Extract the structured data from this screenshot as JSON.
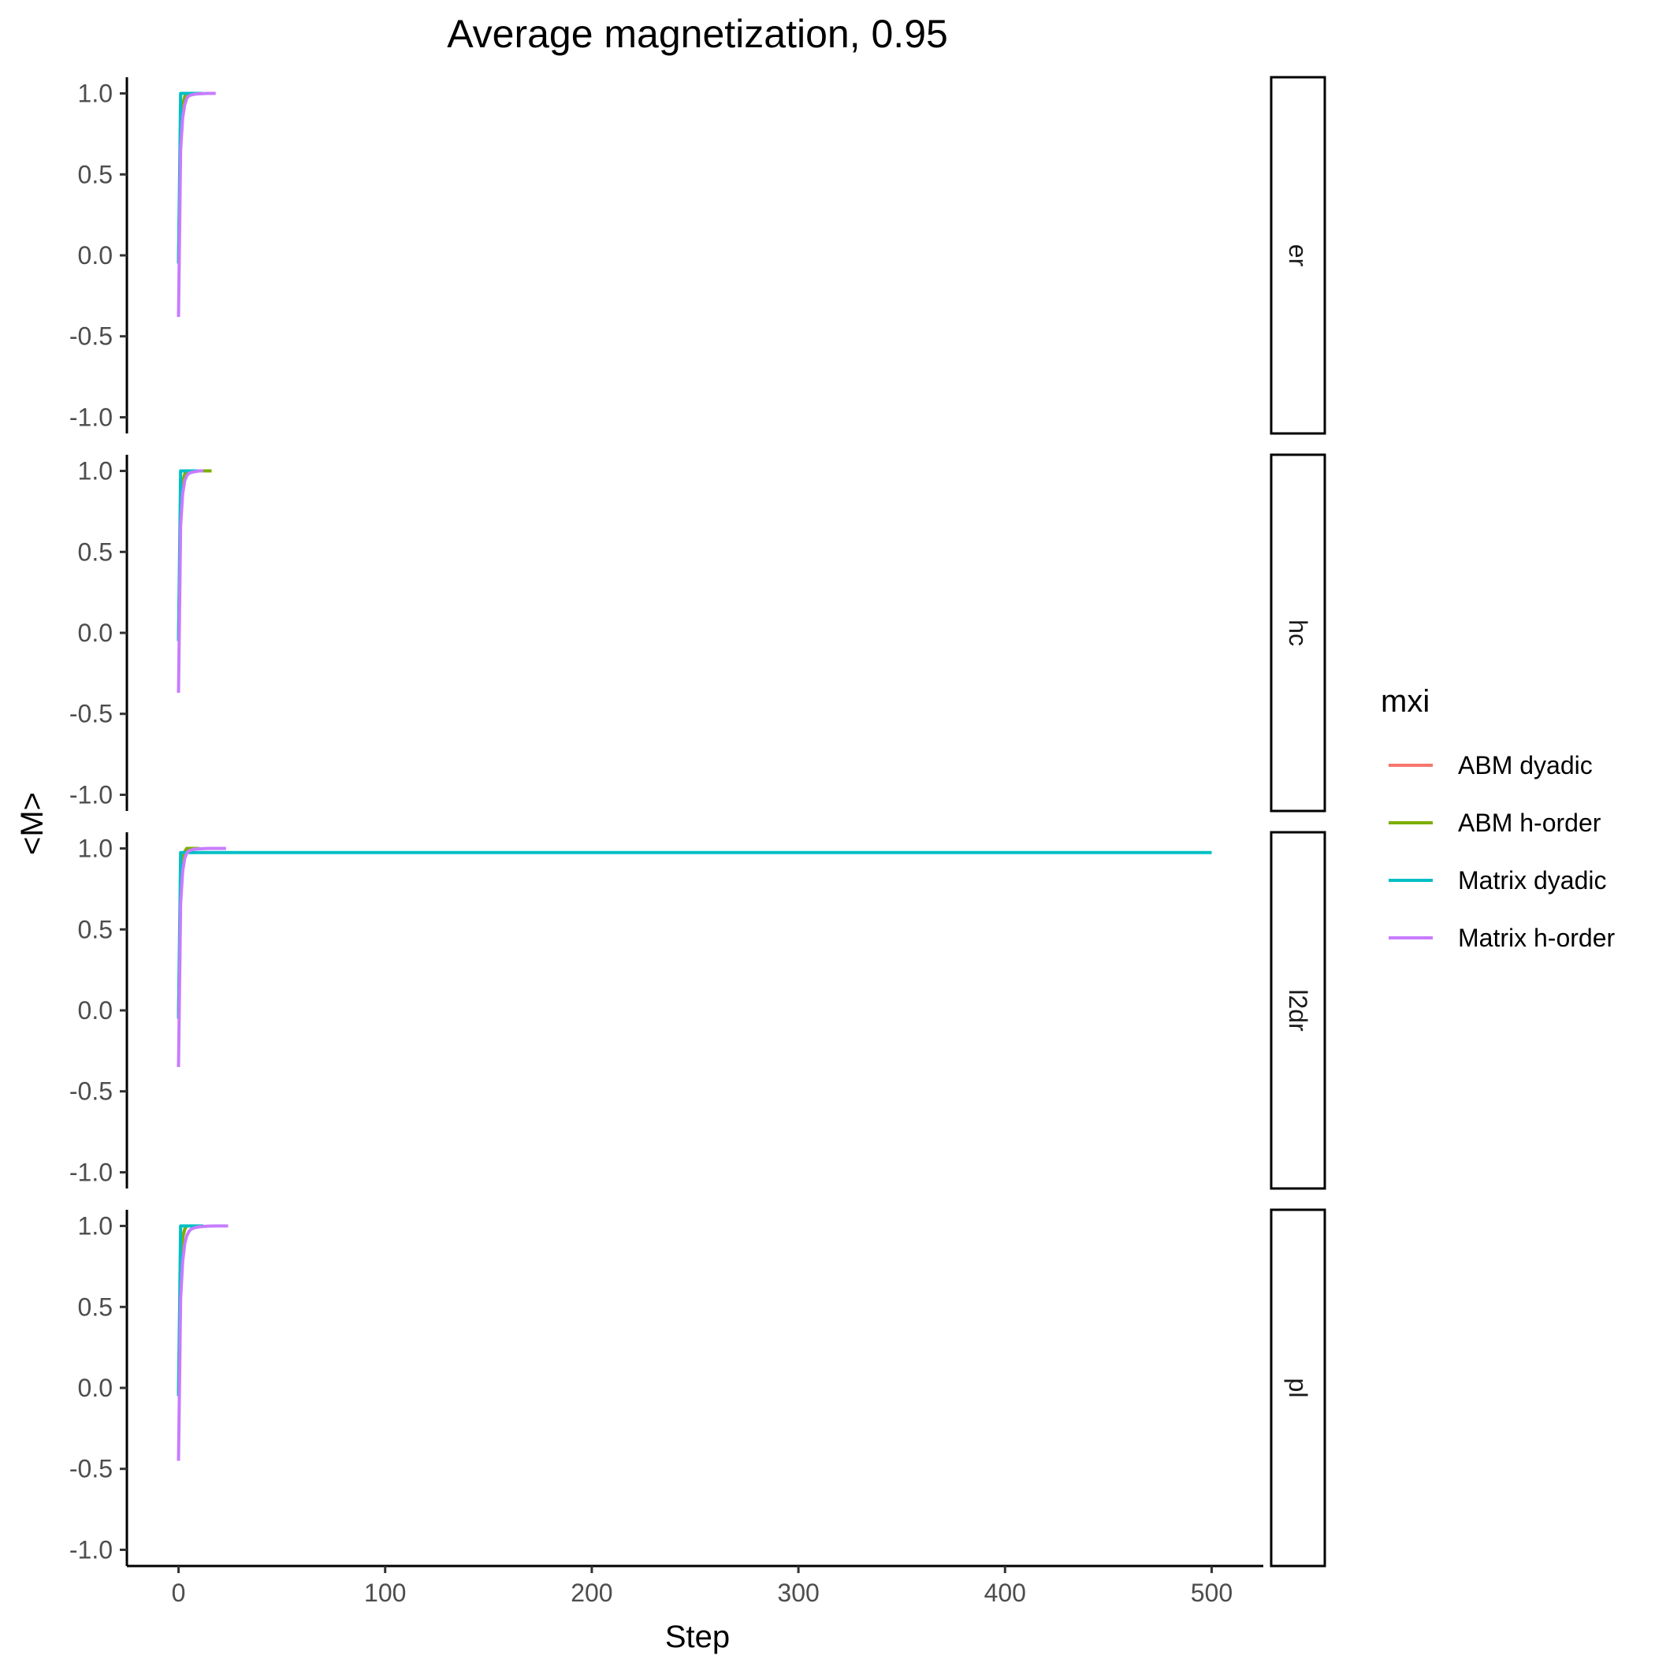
{
  "chart_data": {
    "type": "line",
    "title": "Average magnetization, 0.95",
    "xlabel": "Step",
    "ylabel": "<M>",
    "xlim": [
      -25,
      525
    ],
    "ylim": [
      -1.1,
      1.1
    ],
    "x_ticks": [
      0,
      100,
      200,
      300,
      400,
      500
    ],
    "y_ticks": [
      -1.0,
      -0.5,
      0.0,
      0.5,
      1.0
    ],
    "x_tick_labels": [
      "0",
      "100",
      "200",
      "300",
      "400",
      "500"
    ],
    "y_tick_labels": [
      "-1.0",
      "-0.5",
      "0.0",
      "0.5",
      "1.0"
    ],
    "grid": false,
    "legend": {
      "title": "mxi",
      "position": "right",
      "entries": [
        {
          "name": "ABM dyadic",
          "color": "#F8766D"
        },
        {
          "name": "ABM h-order",
          "color": "#7CAE00"
        },
        {
          "name": "Matrix dyadic",
          "color": "#00BFC4"
        },
        {
          "name": "Matrix h-order",
          "color": "#C77CFF"
        }
      ]
    },
    "panels": [
      {
        "facet": "er",
        "series": [
          {
            "name": "ABM dyadic",
            "x": [
              0,
              1,
              2,
              3,
              4,
              5,
              6,
              8,
              10,
              12
            ],
            "y": [
              -0.05,
              0.72,
              0.93,
              0.98,
              1.0,
              1.0,
              1.0,
              1.0,
              1.0,
              1.0
            ]
          },
          {
            "name": "ABM h-order",
            "x": [
              0,
              1,
              2,
              3,
              4,
              5,
              6,
              8,
              10,
              12
            ],
            "y": [
              -0.05,
              0.72,
              0.93,
              0.98,
              1.0,
              1.0,
              1.0,
              1.0,
              1.0,
              1.0
            ]
          },
          {
            "name": "Matrix dyadic",
            "x": [
              0,
              1,
              2,
              3,
              5,
              10,
              12
            ],
            "y": [
              -0.05,
              1.0,
              1.0,
              1.0,
              1.0,
              1.0,
              1.0
            ]
          },
          {
            "name": "Matrix h-order",
            "x": [
              0,
              1,
              2,
              3,
              4,
              5,
              6,
              8,
              10,
              14,
              18
            ],
            "y": [
              -0.38,
              0.65,
              0.85,
              0.93,
              0.97,
              0.985,
              0.99,
              0.996,
              0.998,
              1.0,
              1.0
            ]
          }
        ]
      },
      {
        "facet": "hc",
        "series": [
          {
            "name": "ABM dyadic",
            "x": [
              0,
              1,
              2,
              3,
              4,
              5,
              6,
              8,
              10,
              14,
              16
            ],
            "y": [
              -0.05,
              0.72,
              0.93,
              0.98,
              1.0,
              1.0,
              1.0,
              1.0,
              1.0,
              1.0,
              1.0
            ]
          },
          {
            "name": "ABM h-order",
            "x": [
              0,
              1,
              2,
              3,
              4,
              5,
              6,
              8,
              10,
              14,
              16
            ],
            "y": [
              -0.05,
              0.72,
              0.93,
              0.98,
              1.0,
              1.0,
              1.0,
              1.0,
              1.0,
              1.0,
              1.0
            ]
          },
          {
            "name": "Matrix dyadic",
            "x": [
              0,
              1,
              2,
              3,
              5,
              10,
              12
            ],
            "y": [
              -0.05,
              1.0,
              1.0,
              1.0,
              1.0,
              1.0,
              1.0
            ]
          },
          {
            "name": "Matrix h-order",
            "x": [
              0,
              1,
              2,
              3,
              4,
              5,
              6,
              8,
              10,
              12
            ],
            "y": [
              -0.37,
              0.66,
              0.86,
              0.94,
              0.97,
              0.985,
              0.99,
              0.996,
              1.0,
              1.0
            ]
          }
        ]
      },
      {
        "facet": "l2dr",
        "series": [
          {
            "name": "ABM dyadic",
            "x": [
              0,
              1,
              2,
              3,
              4,
              5,
              6,
              8,
              10
            ],
            "y": [
              -0.05,
              0.72,
              0.93,
              0.98,
              1.0,
              1.0,
              1.0,
              1.0,
              1.0
            ]
          },
          {
            "name": "ABM h-order",
            "x": [
              0,
              1,
              2,
              3,
              4,
              5,
              6,
              8,
              10
            ],
            "y": [
              -0.05,
              0.72,
              0.93,
              0.98,
              1.0,
              1.0,
              1.0,
              1.0,
              1.0
            ]
          },
          {
            "name": "Matrix dyadic",
            "x": [
              0,
              1,
              2,
              3,
              5,
              10,
              100,
              200,
              300,
              400,
              500
            ],
            "y": [
              -0.05,
              0.975,
              0.975,
              0.975,
              0.975,
              0.975,
              0.975,
              0.975,
              0.975,
              0.975,
              0.975
            ]
          },
          {
            "name": "Matrix h-order",
            "x": [
              0,
              1,
              2,
              3,
              4,
              5,
              6,
              8,
              10,
              14,
              18,
              23
            ],
            "y": [
              -0.35,
              0.66,
              0.86,
              0.94,
              0.97,
              0.985,
              0.99,
              0.996,
              0.998,
              1.0,
              1.0,
              1.0
            ]
          }
        ]
      },
      {
        "facet": "pl",
        "series": [
          {
            "name": "ABM dyadic",
            "x": [
              0,
              1,
              2,
              3,
              4,
              5,
              6,
              8,
              10
            ],
            "y": [
              -0.05,
              0.72,
              0.93,
              0.98,
              1.0,
              1.0,
              1.0,
              1.0,
              1.0
            ]
          },
          {
            "name": "ABM h-order",
            "x": [
              0,
              1,
              2,
              3,
              4,
              5,
              6,
              8,
              10
            ],
            "y": [
              -0.05,
              0.72,
              0.93,
              0.98,
              1.0,
              1.0,
              1.0,
              1.0,
              1.0
            ]
          },
          {
            "name": "Matrix dyadic",
            "x": [
              0,
              1,
              2,
              3,
              5,
              10,
              12
            ],
            "y": [
              -0.05,
              1.0,
              1.0,
              1.0,
              1.0,
              1.0,
              1.0
            ]
          },
          {
            "name": "Matrix h-order",
            "x": [
              0,
              1,
              2,
              3,
              4,
              5,
              6,
              8,
              10,
              14,
              18,
              24
            ],
            "y": [
              -0.45,
              0.55,
              0.78,
              0.89,
              0.94,
              0.965,
              0.98,
              0.99,
              0.995,
              0.999,
              1.0,
              1.0
            ]
          }
        ]
      }
    ]
  }
}
